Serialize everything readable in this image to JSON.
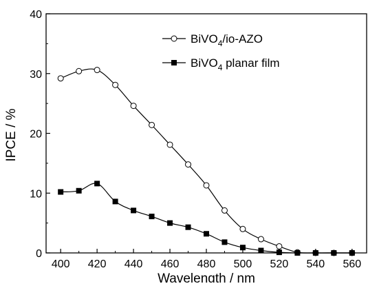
{
  "chart_data": {
    "type": "line",
    "xlabel": "Wavelength / nm",
    "ylabel": "IPCE / %",
    "xlim": [
      392,
      568
    ],
    "ylim": [
      0,
      40
    ],
    "xticks": [
      400,
      420,
      440,
      460,
      480,
      500,
      520,
      540,
      560
    ],
    "yticks": [
      0,
      10,
      20,
      30,
      40
    ],
    "grid": false,
    "legend_position": "top-right",
    "series": [
      {
        "name": "BiVO4/io-AZO",
        "label_main": "BiVO",
        "label_sub": "4",
        "label_tail": "/io-AZO",
        "marker": "open-circle",
        "x": [
          400,
          410,
          420,
          430,
          440,
          450,
          460,
          470,
          480,
          490,
          500,
          510,
          520,
          530,
          540,
          550,
          560
        ],
        "values": [
          29.2,
          30.4,
          30.6,
          28.1,
          24.6,
          21.4,
          18.1,
          14.8,
          11.3,
          7.1,
          4.0,
          2.3,
          1.1,
          0.1,
          0.0,
          0.0,
          0.0
        ]
      },
      {
        "name": "BiVO4 planar film",
        "label_main": "BiVO",
        "label_sub": "4",
        "label_tail": " planar film",
        "marker": "filled-square",
        "x": [
          400,
          410,
          420,
          430,
          440,
          450,
          460,
          470,
          480,
          490,
          500,
          510,
          520,
          530,
          540,
          550,
          560
        ],
        "values": [
          10.2,
          10.4,
          11.6,
          8.6,
          7.1,
          6.1,
          5.0,
          4.3,
          3.2,
          1.8,
          0.9,
          0.4,
          0.1,
          0.0,
          0.0,
          0.0,
          0.0
        ]
      }
    ]
  }
}
